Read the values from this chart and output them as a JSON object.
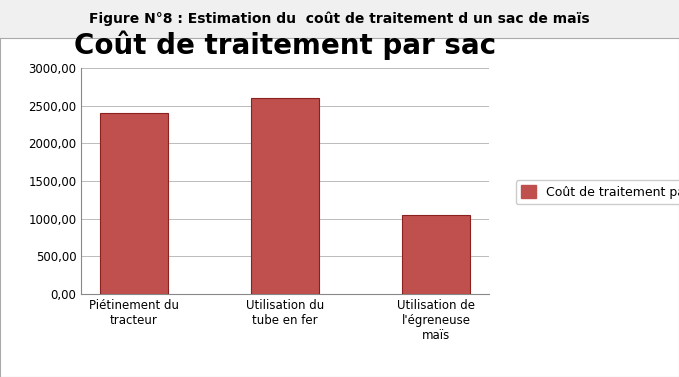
{
  "title": "Coût de traitement par sac",
  "suptitle": "Figure N°8 : Estimation du  coût de traitement d un sac de maïs",
  "categories": [
    "Piétinement du\ntracteur",
    "Utilisation du\ntube en fer",
    "Utilisation de\nl'égreneuse\nmaïs"
  ],
  "values": [
    2400,
    2600,
    1050
  ],
  "bar_color": "#C0504D",
  "bar_edge_color": "#8B2020",
  "legend_label": "Coût de traitement par sac",
  "ylim": [
    0,
    3000
  ],
  "yticks": [
    0,
    500,
    1000,
    1500,
    2000,
    2500,
    3000
  ],
  "ytick_labels": [
    "0,00",
    "500,00",
    "1000,00",
    "1500,00",
    "2000,00",
    "2500,00",
    "3000,00"
  ],
  "background_color": "#F0F0F0",
  "inner_bg_color": "#FFFFFF",
  "plot_bg_color": "#FFFFFF",
  "grid_color": "#BBBBBB",
  "title_fontsize": 20,
  "suptitle_fontsize": 10,
  "tick_fontsize": 8.5,
  "legend_fontsize": 9
}
